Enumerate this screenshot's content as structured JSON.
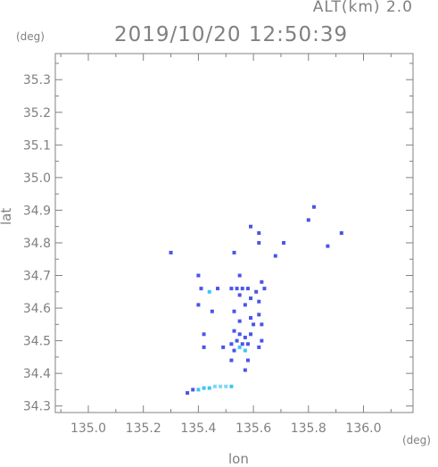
{
  "header": {
    "altitude": "ALT(km) 2.0",
    "timestamp": "2019/10/20 12:50:39"
  },
  "chart_data": {
    "type": "scatter",
    "title": "2019/10/20 12:50:39",
    "xlabel": "lon",
    "ylabel": "lat",
    "x_unit": "(deg)",
    "y_unit": "(deg)",
    "xlim": [
      134.88,
      136.18
    ],
    "ylim": [
      34.28,
      35.38
    ],
    "x_ticks": [
      135.0,
      135.2,
      135.4,
      135.6,
      135.8,
      136.0
    ],
    "x_tick_labels": [
      "135.0",
      "135.2",
      "135.4",
      "135.6",
      "135.8",
      "136.0"
    ],
    "y_ticks": [
      34.3,
      34.4,
      34.5,
      34.6,
      34.7,
      34.8,
      34.9,
      35.0,
      35.1,
      35.2,
      35.3
    ],
    "y_tick_labels": [
      "34.3",
      "34.4",
      "34.5",
      "34.6",
      "34.7",
      "34.8",
      "34.9",
      "35.0",
      "35.1",
      "35.2",
      "35.3"
    ],
    "grid": false,
    "colors": {
      "frame": "#808080",
      "echo_blue": "#4a55e8",
      "echo_cyan": "#3ec6f0",
      "echo_light": "#7fd7f7"
    },
    "points": [
      {
        "lon": 135.3,
        "lat": 34.77,
        "c": "echo_blue"
      },
      {
        "lon": 135.59,
        "lat": 34.85,
        "c": "echo_blue"
      },
      {
        "lon": 135.62,
        "lat": 34.83,
        "c": "echo_blue"
      },
      {
        "lon": 135.62,
        "lat": 34.8,
        "c": "echo_blue"
      },
      {
        "lon": 135.71,
        "lat": 34.8,
        "c": "echo_blue"
      },
      {
        "lon": 135.8,
        "lat": 34.87,
        "c": "echo_blue"
      },
      {
        "lon": 135.82,
        "lat": 34.91,
        "c": "echo_blue"
      },
      {
        "lon": 135.87,
        "lat": 34.79,
        "c": "echo_blue"
      },
      {
        "lon": 135.92,
        "lat": 34.83,
        "c": "echo_blue"
      },
      {
        "lon": 135.53,
        "lat": 34.77,
        "c": "echo_blue"
      },
      {
        "lon": 135.68,
        "lat": 34.76,
        "c": "echo_blue"
      },
      {
        "lon": 135.55,
        "lat": 34.7,
        "c": "echo_blue"
      },
      {
        "lon": 135.4,
        "lat": 34.7,
        "c": "echo_blue"
      },
      {
        "lon": 135.41,
        "lat": 34.66,
        "c": "echo_blue"
      },
      {
        "lon": 135.44,
        "lat": 34.65,
        "c": "echo_cyan"
      },
      {
        "lon": 135.47,
        "lat": 34.66,
        "c": "echo_blue"
      },
      {
        "lon": 135.52,
        "lat": 34.66,
        "c": "echo_blue"
      },
      {
        "lon": 135.54,
        "lat": 34.66,
        "c": "echo_blue"
      },
      {
        "lon": 135.56,
        "lat": 34.66,
        "c": "echo_blue"
      },
      {
        "lon": 135.58,
        "lat": 34.66,
        "c": "echo_blue"
      },
      {
        "lon": 135.61,
        "lat": 34.65,
        "c": "echo_blue"
      },
      {
        "lon": 135.64,
        "lat": 34.66,
        "c": "echo_blue"
      },
      {
        "lon": 135.63,
        "lat": 34.68,
        "c": "echo_blue"
      },
      {
        "lon": 135.55,
        "lat": 34.64,
        "c": "echo_blue"
      },
      {
        "lon": 135.59,
        "lat": 34.63,
        "c": "echo_blue"
      },
      {
        "lon": 135.62,
        "lat": 34.62,
        "c": "echo_blue"
      },
      {
        "lon": 135.4,
        "lat": 34.61,
        "c": "echo_blue"
      },
      {
        "lon": 135.45,
        "lat": 34.59,
        "c": "echo_blue"
      },
      {
        "lon": 135.53,
        "lat": 34.59,
        "c": "echo_blue"
      },
      {
        "lon": 135.57,
        "lat": 34.61,
        "c": "echo_blue"
      },
      {
        "lon": 135.59,
        "lat": 34.57,
        "c": "echo_blue"
      },
      {
        "lon": 135.62,
        "lat": 34.58,
        "c": "echo_blue"
      },
      {
        "lon": 135.55,
        "lat": 34.56,
        "c": "echo_blue"
      },
      {
        "lon": 135.6,
        "lat": 34.55,
        "c": "echo_blue"
      },
      {
        "lon": 135.63,
        "lat": 34.55,
        "c": "echo_blue"
      },
      {
        "lon": 135.53,
        "lat": 34.53,
        "c": "echo_blue"
      },
      {
        "lon": 135.55,
        "lat": 34.52,
        "c": "echo_blue"
      },
      {
        "lon": 135.57,
        "lat": 34.51,
        "c": "echo_blue"
      },
      {
        "lon": 135.59,
        "lat": 34.52,
        "c": "echo_blue"
      },
      {
        "lon": 135.54,
        "lat": 34.5,
        "c": "echo_blue"
      },
      {
        "lon": 135.52,
        "lat": 34.49,
        "c": "echo_blue"
      },
      {
        "lon": 135.56,
        "lat": 34.49,
        "c": "echo_blue"
      },
      {
        "lon": 135.58,
        "lat": 34.49,
        "c": "echo_blue"
      },
      {
        "lon": 135.55,
        "lat": 34.48,
        "c": "echo_cyan"
      },
      {
        "lon": 135.57,
        "lat": 34.47,
        "c": "echo_cyan"
      },
      {
        "lon": 135.53,
        "lat": 34.47,
        "c": "echo_blue"
      },
      {
        "lon": 135.63,
        "lat": 34.5,
        "c": "echo_blue"
      },
      {
        "lon": 135.62,
        "lat": 34.48,
        "c": "echo_blue"
      },
      {
        "lon": 135.42,
        "lat": 34.52,
        "c": "echo_blue"
      },
      {
        "lon": 135.42,
        "lat": 34.48,
        "c": "echo_blue"
      },
      {
        "lon": 135.49,
        "lat": 34.48,
        "c": "echo_blue"
      },
      {
        "lon": 135.52,
        "lat": 34.44,
        "c": "echo_blue"
      },
      {
        "lon": 135.58,
        "lat": 34.44,
        "c": "echo_blue"
      },
      {
        "lon": 135.57,
        "lat": 34.41,
        "c": "echo_blue"
      },
      {
        "lon": 135.36,
        "lat": 34.34,
        "c": "echo_blue"
      },
      {
        "lon": 135.38,
        "lat": 34.35,
        "c": "echo_blue"
      },
      {
        "lon": 135.4,
        "lat": 34.35,
        "c": "echo_cyan"
      },
      {
        "lon": 135.42,
        "lat": 34.355,
        "c": "echo_cyan"
      },
      {
        "lon": 135.44,
        "lat": 34.355,
        "c": "echo_cyan"
      },
      {
        "lon": 135.46,
        "lat": 34.36,
        "c": "echo_light"
      },
      {
        "lon": 135.48,
        "lat": 34.36,
        "c": "echo_light"
      },
      {
        "lon": 135.5,
        "lat": 34.36,
        "c": "echo_light"
      },
      {
        "lon": 135.52,
        "lat": 34.36,
        "c": "echo_cyan"
      }
    ]
  }
}
